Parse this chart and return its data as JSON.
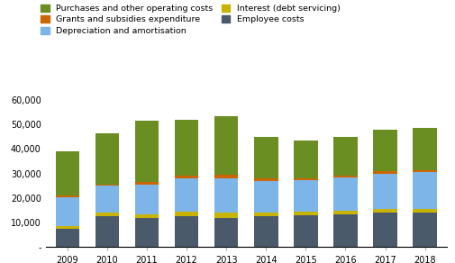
{
  "years": [
    2009,
    2010,
    2011,
    2012,
    2013,
    2014,
    2015,
    2016,
    2017,
    2018
  ],
  "employee_costs": [
    7500,
    12500,
    12000,
    12500,
    12000,
    12500,
    13000,
    13500,
    14000,
    14000
  ],
  "interest": [
    1000,
    1500,
    1500,
    2000,
    2000,
    1500,
    1500,
    1500,
    1500,
    1500
  ],
  "depreciation": [
    12000,
    11000,
    12000,
    13500,
    14000,
    13000,
    13000,
    13500,
    14500,
    15000
  ],
  "grants": [
    500,
    500,
    1000,
    1000,
    1500,
    1000,
    500,
    500,
    1000,
    1000
  ],
  "purchases": [
    18000,
    21000,
    25000,
    23000,
    24000,
    17000,
    15500,
    16000,
    17000,
    17000
  ],
  "colors": {
    "purchases": "#6b8e23",
    "grants": "#cc6600",
    "depreciation": "#7eb5e8",
    "interest": "#c8b400",
    "employee": "#4a5a6b"
  },
  "ylim": [
    0,
    60000
  ],
  "yticks": [
    0,
    10000,
    20000,
    30000,
    40000,
    50000,
    60000
  ],
  "ytick_labels": [
    "-",
    "10,000",
    "20,000",
    "30,000",
    "40,000",
    "50,000",
    "60,000"
  ],
  "legend_labels": {
    "purchases": "Purchases and other operating costs",
    "grants": "Grants and subsidies expenditure",
    "depreciation": "Depreciation and amortisation",
    "interest": "Interest (debt servicing)",
    "employee": "Employee costs"
  },
  "background_color": "#ffffff",
  "bar_width": 0.6
}
